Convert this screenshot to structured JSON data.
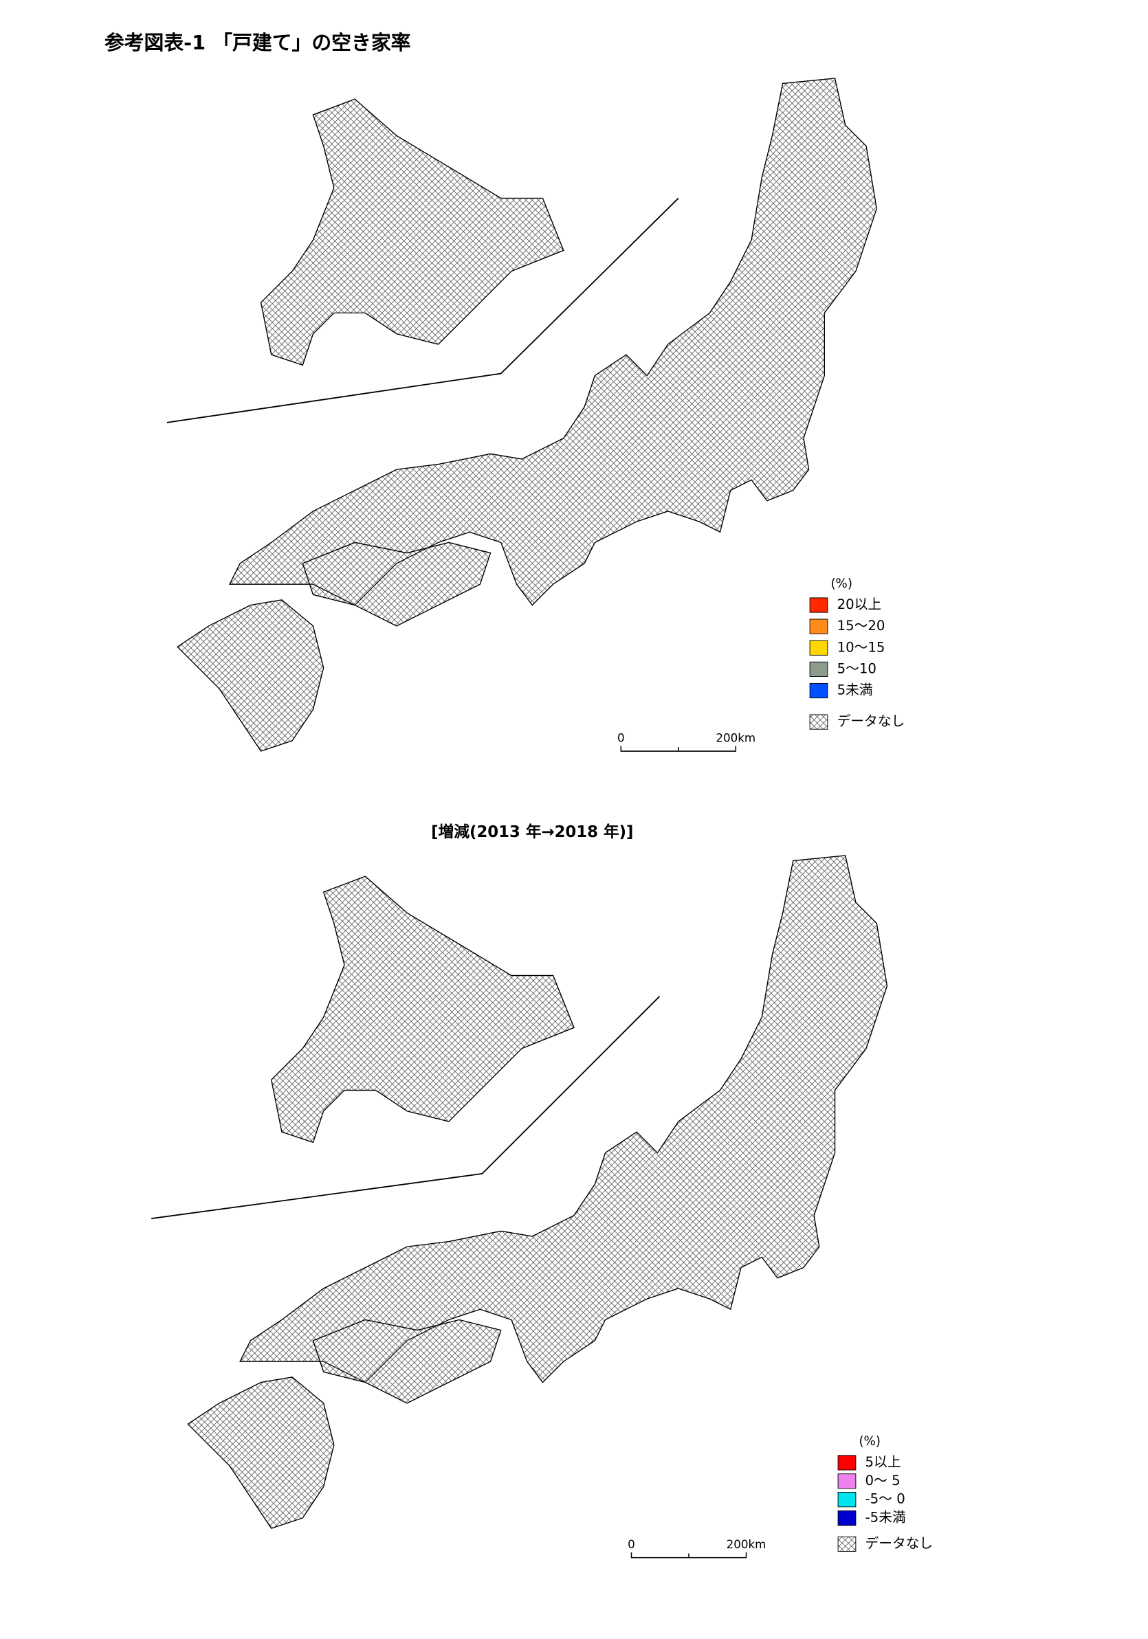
{
  "title": "参考図表-1 「戸建て」の空き家率",
  "map1": {
    "legend": {
      "unit": "(%)",
      "items": [
        {
          "label": "20以上",
          "color": "#ff2a00"
        },
        {
          "label": "15～20",
          "color": "#ff8c1a"
        },
        {
          "label": "10～15",
          "color": "#ffd700"
        },
        {
          "label": "5～10",
          "color": "#8c9c8c"
        },
        {
          "label": "5未満",
          "color": "#0050ff"
        }
      ],
      "no_data": "データなし"
    },
    "scale": [
      "0",
      "200km"
    ]
  },
  "subtitle": "[増減(2013 年→2018 年)]",
  "map2": {
    "legend": {
      "unit": "(%)",
      "items": [
        {
          "label": "5以上",
          "color": "#ff0000"
        },
        {
          "label": "0～ 5",
          "color": "#ee82ee"
        },
        {
          "label": "-5～ 0",
          "color": "#00e5ee"
        },
        {
          "label": "-5未満",
          "color": "#0000cc"
        }
      ],
      "no_data": "データなし"
    },
    "scale": [
      "0",
      "200km"
    ]
  }
}
